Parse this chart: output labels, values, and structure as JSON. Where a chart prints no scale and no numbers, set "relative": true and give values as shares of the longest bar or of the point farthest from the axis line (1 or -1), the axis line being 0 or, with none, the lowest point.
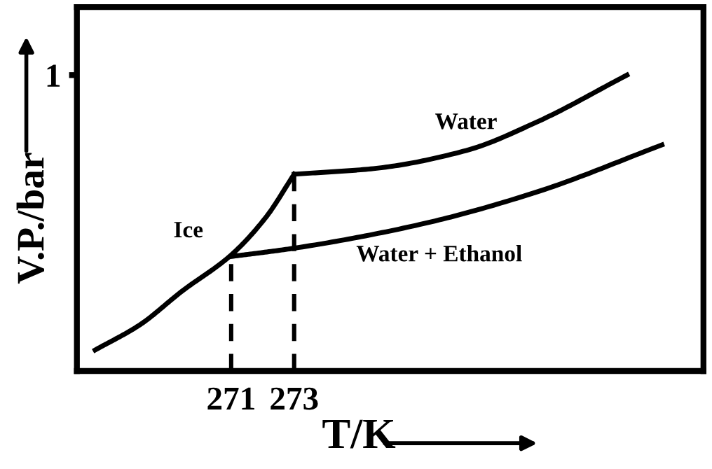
{
  "chart_data": {
    "type": "line",
    "xlabel": "T/K",
    "ylabel": "V.P./bar",
    "xlim": [
      266.1,
      286
    ],
    "xticks": [
      271,
      273
    ],
    "relative": true,
    "grid": false,
    "marker": "none",
    "series": [
      {
        "name": "Ice",
        "color": "#000000",
        "x": [
          266.68,
          268.1,
          269.43,
          271,
          272.1,
          273
        ],
        "values": [
          0.071,
          0.156,
          0.269,
          0.392,
          0.519,
          0.665
        ]
      },
      {
        "name": "Water",
        "color": "#000000",
        "x": [
          273,
          275.52,
          278.46,
          280.68,
          283.57
        ],
        "values": [
          0.665,
          0.684,
          0.745,
          0.84,
          1.0
        ]
      },
      {
        "name": "Water + Ethanol",
        "color": "#000000",
        "x": [
          271,
          273,
          276.99,
          280.68,
          284.68
        ],
        "values": [
          0.387,
          0.415,
          0.495,
          0.604,
          0.764
        ]
      },
      {
        "color": "#000000",
        "line_style": "dashed",
        "x": [
          271,
          271
        ],
        "values": [
          0,
          0.387
        ]
      },
      {
        "color": "#000000",
        "line_style": "dashed",
        "x": [
          273,
          273
        ],
        "values": [
          0,
          0.665
        ]
      }
    ],
    "annotations": [
      "1"
    ]
  }
}
